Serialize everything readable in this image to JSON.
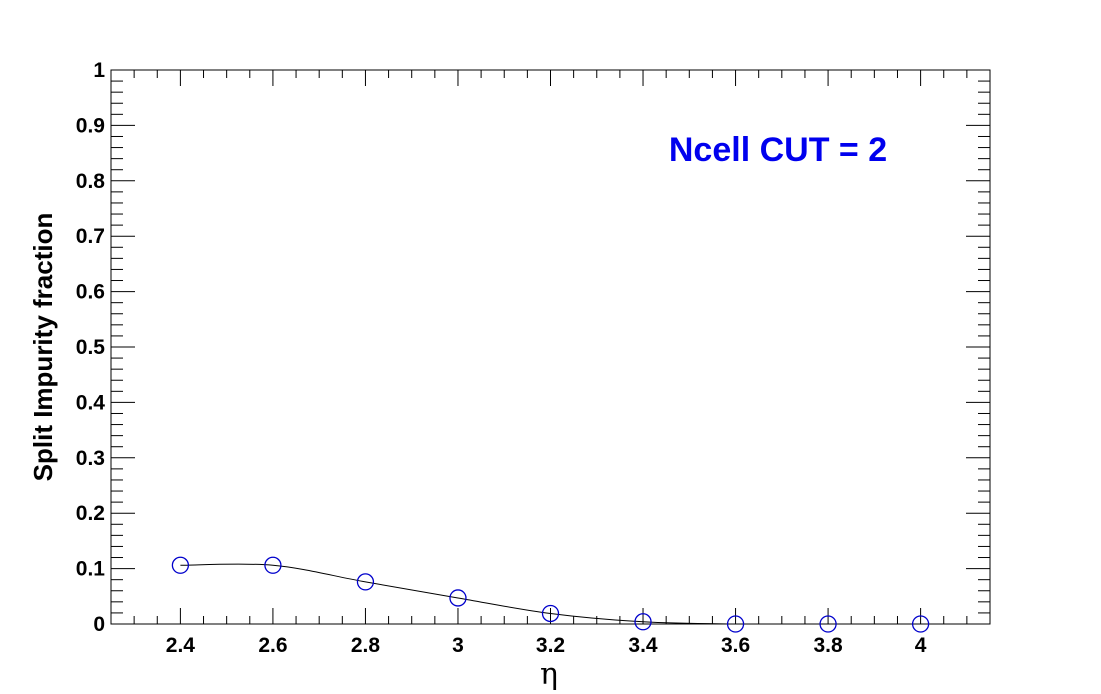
{
  "chart_data": {
    "type": "scatter",
    "title": "",
    "xlabel": "η",
    "ylabel": "Split Impurity fraction",
    "annotation": "Ncell CUT = 2",
    "xlim": [
      2.25,
      4.15
    ],
    "ylim": [
      0,
      1
    ],
    "x_ticks": [
      "2.4",
      "2.6",
      "2.8",
      "3",
      "3.2",
      "3.4",
      "3.6",
      "3.8",
      "4"
    ],
    "y_ticks": [
      "0",
      "0.1",
      "0.2",
      "0.3",
      "0.4",
      "0.5",
      "0.6",
      "0.7",
      "0.8",
      "0.9",
      "1"
    ],
    "grid": false,
    "series": [
      {
        "x": [
          2.4,
          2.6,
          2.8,
          3.0,
          3.2,
          3.4,
          3.6,
          3.8,
          4.0
        ],
        "y": [
          0.106,
          0.106,
          0.076,
          0.047,
          0.019,
          0.004,
          0.0,
          0.0,
          0.0
        ],
        "marker": "open-circle",
        "marker_color": "#0000cc",
        "line": "smooth",
        "line_color": "#000000"
      }
    ],
    "colors": {
      "annotation": "#0000ee",
      "marker": "#0000cc",
      "line": "#000000"
    }
  }
}
